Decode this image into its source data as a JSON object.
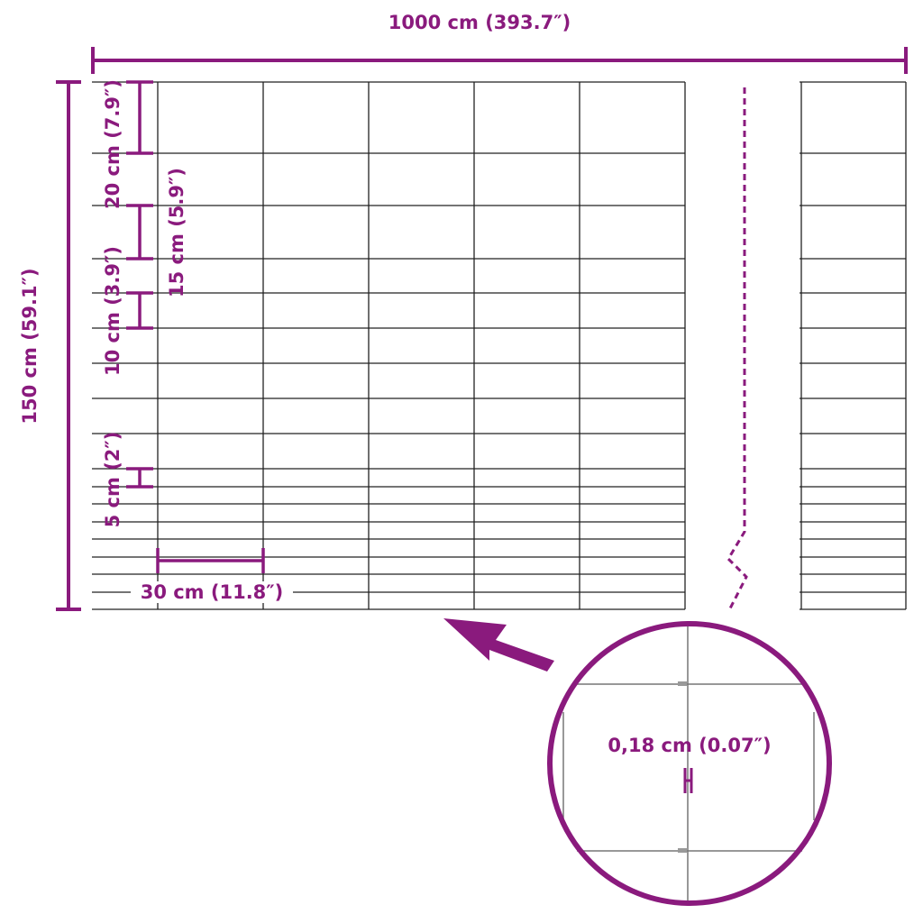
{
  "colors": {
    "accent": "#8a1a7d",
    "wire": "#222222"
  },
  "dimensions": {
    "total_length": "1000 cm (393.7″)",
    "total_height": "150 cm (59.1″)",
    "spacing_20": "20 cm (7.9″)",
    "spacing_15": "15 cm (5.9″)",
    "spacing_10": "10 cm (3.9″)",
    "spacing_5": "5 cm (2″)",
    "post_spacing": "30 cm (11.8″)",
    "wire_thickness": "0,18 cm (0.07″)"
  },
  "icons": {
    "arrow": "arrow-pointing-to-fence",
    "zoom": "magnifier-circle"
  }
}
